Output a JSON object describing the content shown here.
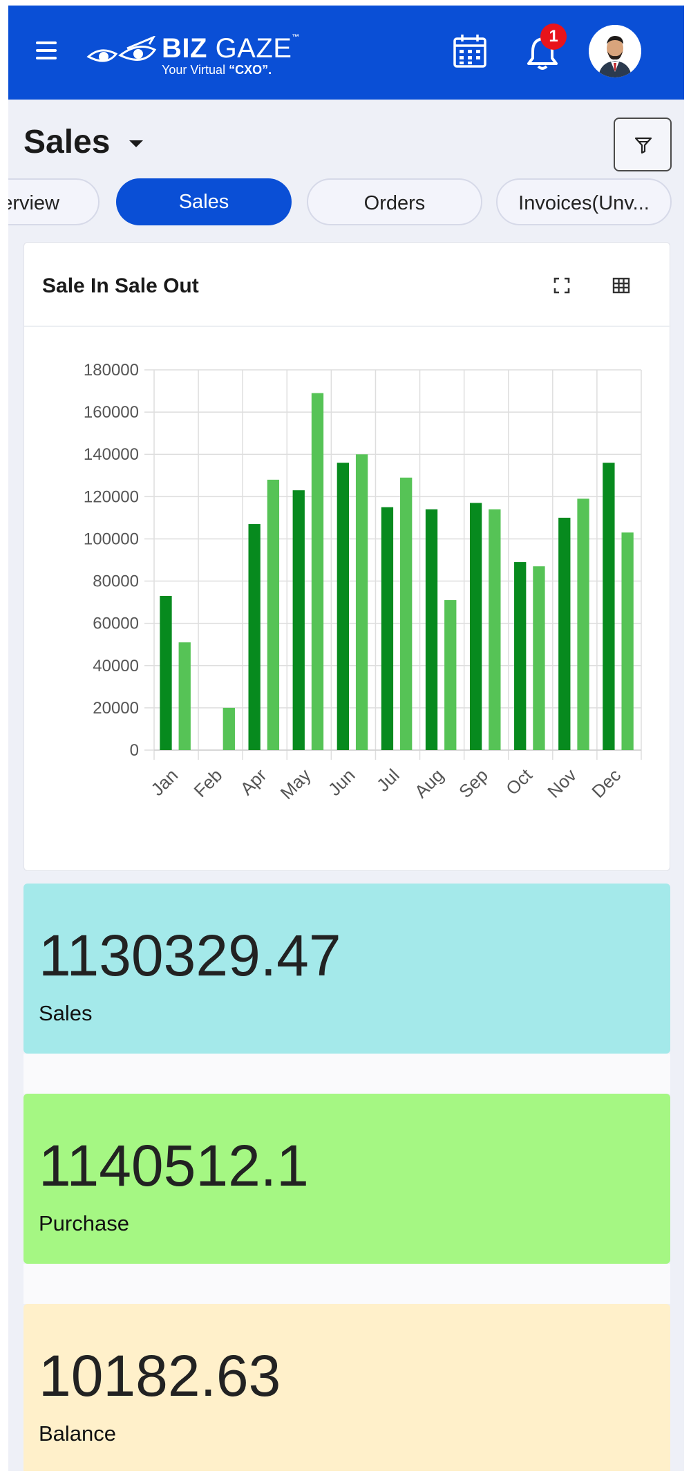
{
  "header": {
    "brand": {
      "name_bold": "BIZ",
      "name_light": "GAZE",
      "trademark": "™",
      "tagline_prefix": "Your Virtual ",
      "tagline_bold": "“CXO”."
    },
    "notification_count": "1",
    "icons": [
      "menu-icon",
      "calendar-icon",
      "bell-icon",
      "avatar"
    ],
    "colors": {
      "bar": "#0a4fd6",
      "badge": "#e8141b"
    }
  },
  "page": {
    "title": "Sales"
  },
  "tabs": [
    {
      "label": "Overview",
      "active": false
    },
    {
      "label": "Sales",
      "active": true
    },
    {
      "label": "Orders",
      "active": false
    },
    {
      "label": "Invoices(Unv...",
      "active": false
    }
  ],
  "chart_card": {
    "title": "Sale In Sale Out",
    "icons": [
      "expand-icon",
      "table-icon"
    ]
  },
  "chart_data": {
    "type": "bar",
    "title": "",
    "categories": [
      "Jan",
      "Feb",
      "Apr",
      "May",
      "Jun",
      "Jul",
      "Aug",
      "Sep",
      "Oct",
      "Nov",
      "Dec"
    ],
    "series": [
      {
        "values": [
          73000,
          0,
          107000,
          123000,
          136000,
          115000,
          114000,
          117000,
          89000,
          110000,
          136000
        ],
        "color": "#078a1e"
      },
      {
        "values": [
          51000,
          20000,
          128000,
          169000,
          140000,
          129000,
          71000,
          114000,
          87000,
          119000,
          103000
        ],
        "color": "#56c356"
      }
    ],
    "ylim": [
      0,
      180000
    ],
    "yticks": [
      0,
      20000,
      40000,
      60000,
      80000,
      100000,
      120000,
      140000,
      160000,
      180000
    ],
    "xlabel": "",
    "ylabel": "",
    "grid": true
  },
  "stats": [
    {
      "value": "1130329.47",
      "label": "Sales",
      "color": "#a4e9ea"
    },
    {
      "value": "1140512.1",
      "label": "Purchase",
      "color": "#a5f783"
    },
    {
      "value": "10182.63",
      "label": "Balance",
      "color": "#fff0ca"
    }
  ]
}
